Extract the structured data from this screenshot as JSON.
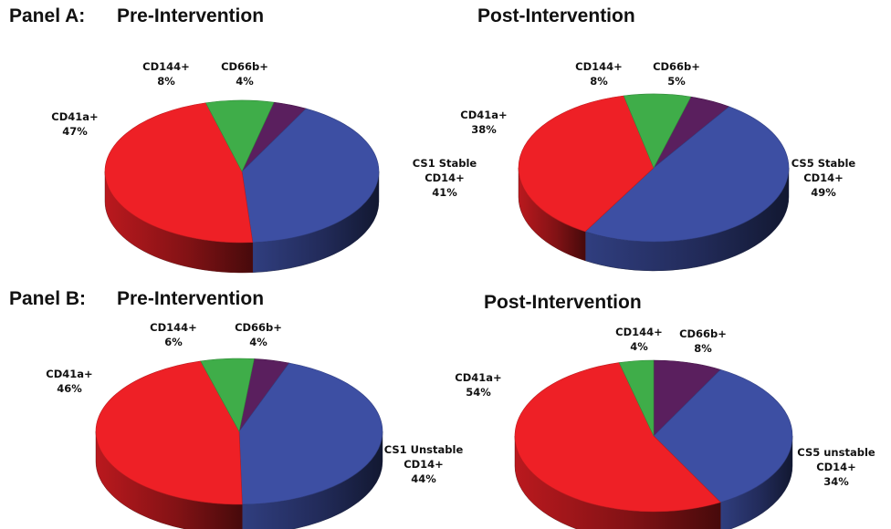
{
  "chart_data": [
    {
      "type": "pie",
      "panel_label": "Panel A:",
      "title": "Pre-Intervention",
      "slices": [
        {
          "label": "CD66b+",
          "value": 4,
          "value_label": "4%",
          "color": "#5a1f5e"
        },
        {
          "label": "CS1 Stable CD14+",
          "label_lines": [
            "CS1 Stable",
            "CD14+"
          ],
          "value": 41,
          "value_label": "41%",
          "color": "#3d4fa3"
        },
        {
          "label": "CD41a+",
          "value": 47,
          "value_label": "47%",
          "color": "#ee2026"
        },
        {
          "label": "CD144+",
          "value": 8,
          "value_label": "8%",
          "color": "#3fad49"
        }
      ]
    },
    {
      "type": "pie",
      "panel_label": "",
      "title": "Post-Intervention",
      "slices": [
        {
          "label": "CD66b+",
          "value": 5,
          "value_label": "5%",
          "color": "#5a1f5e"
        },
        {
          "label": "CS5 Stable CD14+",
          "label_lines": [
            "CS5 Stable",
            "CD14+"
          ],
          "value": 49,
          "value_label": "49%",
          "color": "#3d4fa3"
        },
        {
          "label": "CD41a+",
          "value": 38,
          "value_label": "38%",
          "color": "#ee2026"
        },
        {
          "label": "CD144+",
          "value": 8,
          "value_label": "8%",
          "color": "#3fad49"
        }
      ]
    },
    {
      "type": "pie",
      "panel_label": "Panel B:",
      "title": "Pre-Intervention",
      "slices": [
        {
          "label": "CD66b+",
          "value": 4,
          "value_label": "4%",
          "color": "#5a1f5e"
        },
        {
          "label": "CS1 Unstable CD14+",
          "label_lines": [
            "CS1 Unstable",
            "CD14+"
          ],
          "value": 44,
          "value_label": "44%",
          "color": "#3d4fa3"
        },
        {
          "label": "CD41a+",
          "value": 46,
          "value_label": "46%",
          "color": "#ee2026"
        },
        {
          "label": "CD144+",
          "value": 6,
          "value_label": "6%",
          "color": "#3fad49"
        }
      ]
    },
    {
      "type": "pie",
      "panel_label": "",
      "title": "Post-Intervention",
      "slices": [
        {
          "label": "CD66b+",
          "value": 8,
          "value_label": "8%",
          "color": "#5a1f5e"
        },
        {
          "label": "CS5 unstable CD14+",
          "label_lines": [
            "CS5 unstable",
            "CD14+"
          ],
          "value": 34,
          "value_label": "34%",
          "color": "#3d4fa3"
        },
        {
          "label": "CD41a+",
          "value": 54,
          "value_label": "54%",
          "color": "#ee2026"
        },
        {
          "label": "CD144+",
          "value": 4,
          "value_label": "4%",
          "color": "#3fad49"
        }
      ]
    }
  ]
}
